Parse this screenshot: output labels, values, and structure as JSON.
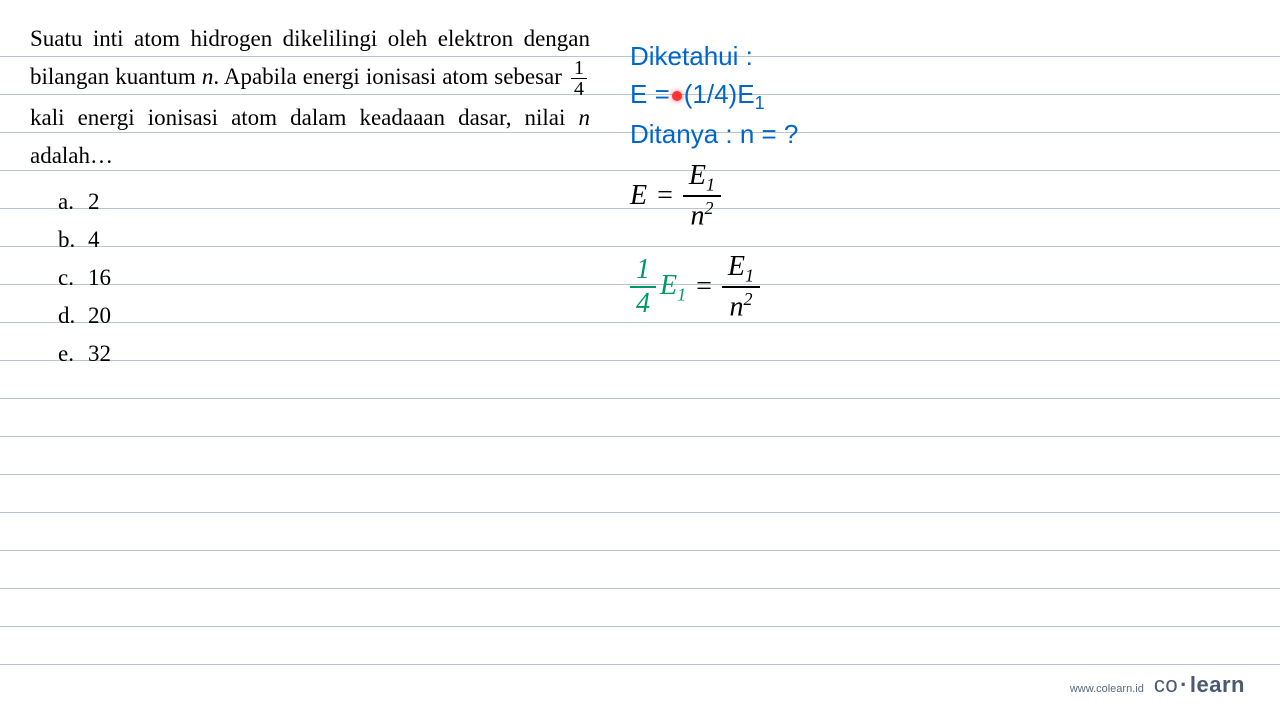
{
  "lines": {
    "positions": [
      56,
      94,
      132,
      170,
      208,
      246,
      284,
      322,
      360,
      398,
      436,
      474,
      512,
      550,
      588,
      626,
      664
    ],
    "color": "#b8c4d0"
  },
  "question": {
    "line1": "Suatu inti atom hidrogen dikelilingi oleh elektron",
    "line2a": "dengan bilangan kuantum ",
    "line2b": ". Apabila energi ionisasi",
    "line3a": "atom sebesar ",
    "line3b": " kali energi ionisasi atom dalam",
    "line4a": "keadaaan dasar, nilai ",
    "line4b": " adalah…",
    "n_var": "n",
    "frac_num": "1",
    "frac_den": "4"
  },
  "options": [
    {
      "label": "a.",
      "value": "2"
    },
    {
      "label": "b.",
      "value": "4"
    },
    {
      "label": "c.",
      "value": "16"
    },
    {
      "label": "d.",
      "value": "20"
    },
    {
      "label": "e.",
      "value": "32"
    }
  ],
  "solution": {
    "known_label": "Diketahui :",
    "known_eq_left": "E =",
    "known_eq_right": "(1/4)E",
    "known_eq_sub": "1",
    "asked_label": "Ditanya : n = ?",
    "formula1": {
      "lhs": "E",
      "frac_num_var": "E",
      "frac_num_sub": "1",
      "frac_den_var": "n",
      "frac_den_sup": "2"
    },
    "formula2": {
      "left_num": "1",
      "left_den": "4",
      "left_var": "E",
      "left_sub": "1",
      "right_num_var": "E",
      "right_num_sub": "1",
      "right_den_var": "n",
      "right_den_sup": "2"
    }
  },
  "footer": {
    "url": "www.colearn.id",
    "brand_co": "co",
    "brand_learn": "learn"
  },
  "colors": {
    "blue": "#0066cc",
    "green": "#009966",
    "red": "#ff3333",
    "text": "#000000",
    "line": "#b8c4d0",
    "footer": "#4a5a70"
  }
}
